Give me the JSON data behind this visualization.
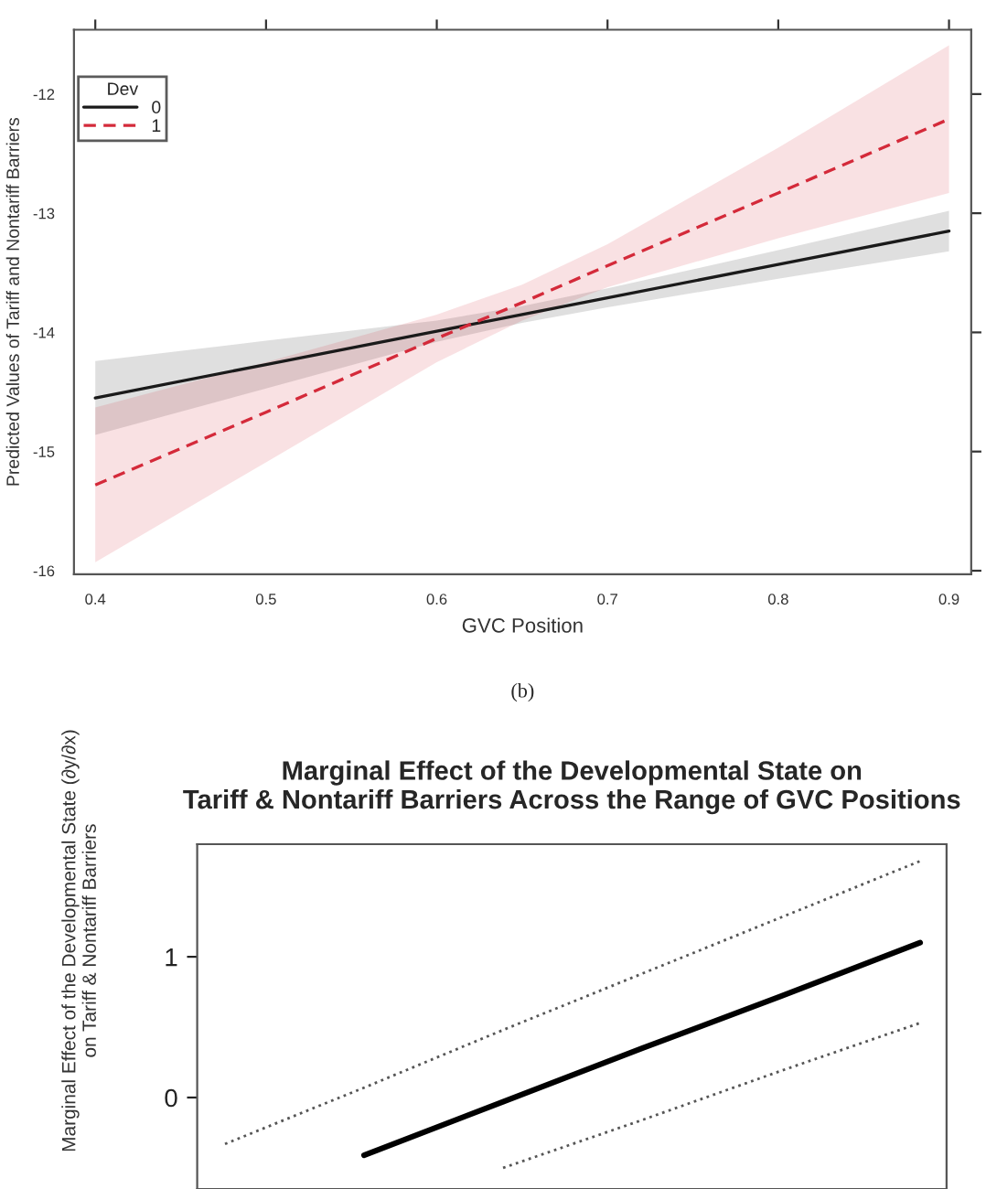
{
  "chart_data": [
    {
      "type": "line",
      "xlabel": "GVC Position",
      "ylabel": "Predicted Values of Tariff and Nontariff Barriers",
      "legend_title": "Dev",
      "legend": "top left",
      "grid": false,
      "x": [
        0.4,
        0.5,
        0.6,
        0.65,
        0.7,
        0.8,
        0.9
      ],
      "xlim": [
        0.3875,
        0.913
      ],
      "xticks": [
        {
          "value": 0.4,
          "label": "0.4"
        },
        {
          "value": 0.5,
          "label": "0.5"
        },
        {
          "value": 0.6,
          "label": "0.6"
        },
        {
          "value": 0.7,
          "label": "0.7"
        },
        {
          "value": 0.8,
          "label": "0.8"
        },
        {
          "value": 0.9,
          "label": "0.9"
        }
      ],
      "ylim": [
        -16.03,
        -11.46
      ],
      "yticks": [
        -16,
        -15,
        -14,
        -13,
        -12
      ],
      "series": [
        {
          "name": "0",
          "color": "#1a1a1a",
          "line_style": "solid",
          "values": [
            -14.55,
            -14.27,
            -13.99,
            -13.85,
            -13.71,
            -13.43,
            -13.15
          ],
          "lower": [
            -14.86,
            -14.47,
            -14.08,
            -13.92,
            -13.79,
            -13.55,
            -13.32
          ],
          "upper": [
            -14.24,
            -14.07,
            -13.9,
            -13.78,
            -13.63,
            -13.31,
            -12.98
          ]
        },
        {
          "name": "1",
          "color": "#d42a3a",
          "line_style": "dashed",
          "values": [
            -15.28,
            -14.67,
            -14.05,
            -13.75,
            -13.44,
            -12.83,
            -12.21
          ],
          "lower": [
            -15.93,
            -15.09,
            -14.25,
            -13.9,
            -13.62,
            -13.21,
            -12.83
          ],
          "upper": [
            -14.63,
            -14.25,
            -13.85,
            -13.6,
            -13.26,
            -12.45,
            -11.59
          ]
        }
      ],
      "annotations": [
        "(b)"
      ]
    },
    {
      "type": "line",
      "title": "Marginal Effect of the Developmental State on\nTariff & Nontariff Barriers Across the Range of GVC Positions",
      "ylabel": "Marginal Effect of the Developmental State (∂y/∂x)\non Tariff & Nontariff Barriers",
      "tick_labels": "y",
      "grid": false,
      "categories": [
        null,
        null,
        null,
        null,
        null,
        null
      ],
      "ylim": [
        -0.65,
        1.8
      ],
      "yticks": [
        0,
        1
      ],
      "series": [
        {
          "color": "#000000",
          "line_style": "solid",
          "values": [
            null,
            -0.41,
            -0.03,
            0.35,
            0.72,
            1.1
          ]
        },
        {
          "color": "#555555",
          "line_style": "dotted",
          "values": [
            -0.33,
            0.07,
            0.48,
            0.88,
            1.28,
            1.68
          ]
        },
        {
          "color": "#555555",
          "line_style": "dotted",
          "values": [
            null,
            null,
            -0.5,
            -0.16,
            0.19,
            0.53
          ]
        }
      ]
    }
  ]
}
